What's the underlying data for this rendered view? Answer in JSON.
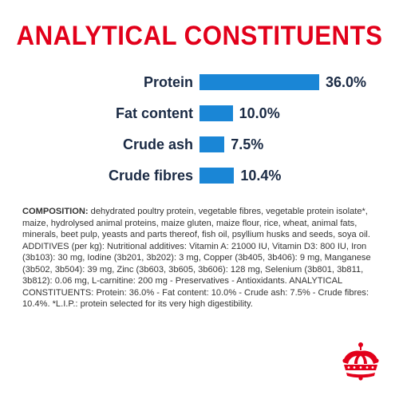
{
  "title": "ANALYTICAL CONSTITUENTS",
  "chart_data": {
    "type": "bar",
    "orientation": "horizontal",
    "categories": [
      "Protein",
      "Fat content",
      "Crude ash",
      "Crude fibres"
    ],
    "values": [
      36.0,
      10.0,
      7.5,
      10.4
    ],
    "value_labels": [
      "36.0%",
      "10.0%",
      "7.5%",
      "10.4%"
    ],
    "xlim": [
      0,
      36.0
    ],
    "grid": false,
    "bar_color": "#1a86d6"
  },
  "composition": {
    "heading": "COMPOSITION:",
    "text": " dehydrated poultry protein, vegetable fibres, vegetable protein isolate*, maize, hydrolysed animal proteins, maize gluten, maize flour, rice, wheat, animal fats, minerals, beet pulp, yeasts and parts thereof, fish oil, psyllium husks and seeds, soya oil. ADDITIVES (per kg): Nutritional additives: Vitamin A: 21000 IU, Vitamin D3: 800 IU, Iron (3b103): 30 mg, Iodine (3b201, 3b202): 3 mg, Copper (3b405, 3b406): 9 mg, Manganese (3b502, 3b504): 39 mg, Zinc (3b603, 3b605, 3b606): 128 mg, Selenium (3b801, 3b811, 3b812): 0.06 mg, L-carnitine: 200 mg - Preservatives - Antioxidants. ANALYTICAL CONSTITUENTS: Protein: 36.0% - Fat content: 10.0% - Crude ash: 7.5% - Crude fibres: 10.4%. *L.I.P.: protein selected for its very high digestibility."
  },
  "colors": {
    "title": "#e2001a",
    "text_dark": "#1a2a44",
    "logo": "#e2001a"
  },
  "logo": {
    "icon": "crown-icon"
  }
}
